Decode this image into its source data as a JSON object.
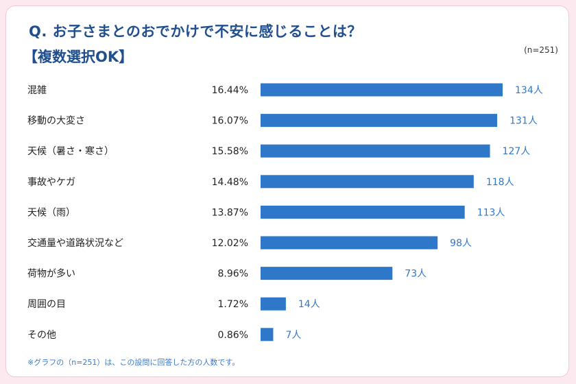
{
  "header": {
    "title": "Q. お子さまとのおでかけで不安に感じることは？",
    "subtitle": "【複数選択OK】",
    "sample": "(n=251)"
  },
  "footnote": "※グラフの（n=251）は、この設問に回答した方の人数です。",
  "colors": {
    "bar": "#2f78c9",
    "title": "#1f4f8f",
    "count": "#2f78c9",
    "background": "#fbe9ef"
  },
  "chart_data": {
    "type": "bar",
    "orientation": "horizontal",
    "categories": [
      "混雑",
      "移動の大変さ",
      "天候（暑さ・寒さ）",
      "事故やケガ",
      "天候（雨）",
      "交通量や道路状況など",
      "荷物が多い",
      "周囲の目",
      "その他"
    ],
    "percent_labels": [
      "16.44%",
      "16.07%",
      "15.58%",
      "14.48%",
      "13.87%",
      "12.02%",
      "8.96%",
      "1.72%",
      "0.86%"
    ],
    "values": [
      134,
      131,
      127,
      118,
      113,
      98,
      73,
      14,
      7
    ],
    "value_labels": [
      "134人",
      "131人",
      "127人",
      "118人",
      "113人",
      "98人",
      "73人",
      "14人",
      "7人"
    ],
    "grid": false
  }
}
